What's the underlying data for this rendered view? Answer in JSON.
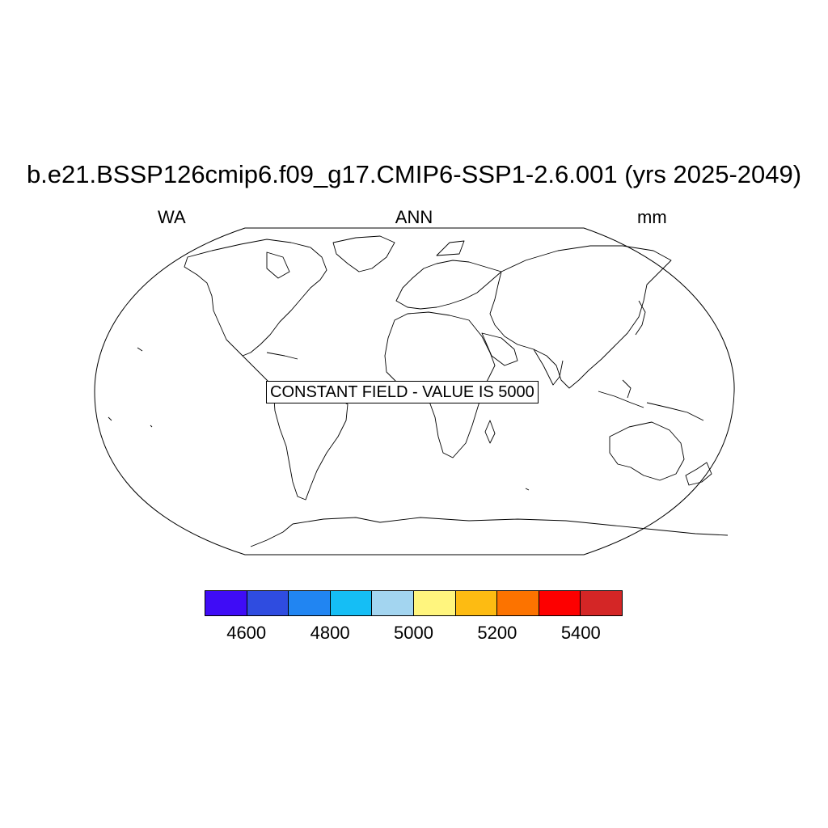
{
  "plot": {
    "title": "b.e21.BSSP126cmip6.f09_g17.CMIP6-SSP1-2.6.001 (yrs 2025-2049)",
    "left_label": "WA",
    "center_label": "ANN",
    "right_label": "mm",
    "notice": "CONSTANT FIELD - VALUE IS 5000"
  },
  "colorbar": {
    "colors": [
      "#3f0cf6",
      "#2f4ce0",
      "#2185f2",
      "#15bef5",
      "#a3d5f0",
      "#fff57e",
      "#fdbb12",
      "#fc7300",
      "#fd0000",
      "#d42626"
    ],
    "tick_labels": [
      "4600",
      "4800",
      "5000",
      "5200",
      "5400"
    ]
  }
}
